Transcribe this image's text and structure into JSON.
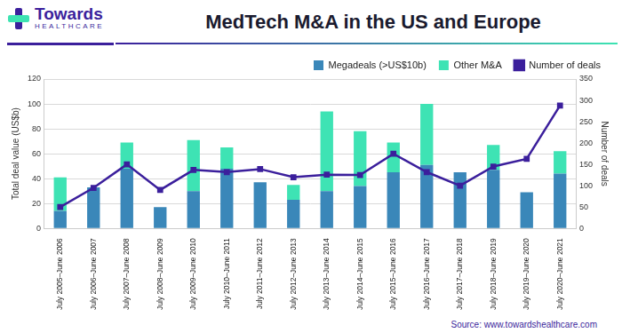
{
  "logo": {
    "text": "Towards",
    "subtext": "HEALTHCARE"
  },
  "chart_data": {
    "type": "bar",
    "title": "MedTech M&A in the US and Europe",
    "source": "Source: www.towardshealthcare.com",
    "y_label": "Total deal value (US$b)",
    "y2_label": "Number of deals",
    "categories": [
      "July 2005–June 2006",
      "July 2006–June 2007",
      "July 2007–June 2008",
      "July 2008–June 2009",
      "July 2009–June 2010",
      "July 2010–June 2011",
      "July 2011–June 2012",
      "July 2012–June 2013",
      "July 2013–June 2014",
      "July 2014–June 2015",
      "July 2015–June 2016",
      "July 2016–June 2017",
      "July 2017–June 2018",
      "July 2018–June 2019",
      "July 2019–June 2020",
      "July 2020–June 2021"
    ],
    "series": [
      {
        "name": "Megadeals (>US$10b)",
        "type": "bar",
        "color": "#3a87b9",
        "values": [
          14,
          33,
          48,
          17,
          30,
          48,
          37,
          23,
          30,
          34,
          45,
          51,
          45,
          47,
          29,
          44
        ]
      },
      {
        "name": "Other M&A",
        "type": "bar",
        "color": "#3ee3b4",
        "values": [
          27,
          0,
          21,
          0,
          41,
          17,
          0,
          12,
          64,
          44,
          24,
          49,
          0,
          20,
          0,
          18
        ]
      },
      {
        "name": "Number of deals",
        "type": "line",
        "axis": "y2",
        "color": "#3b1f9c",
        "marker": "square",
        "values": [
          50,
          95,
          150,
          90,
          137,
          132,
          139,
          120,
          126,
          125,
          175,
          132,
          100,
          145,
          163,
          288
        ]
      }
    ],
    "stacked": true,
    "ylim": [
      0,
      120
    ],
    "yticks": [
      0,
      20,
      40,
      60,
      80,
      100,
      120
    ],
    "y2lim": [
      0,
      350
    ],
    "y2ticks": [
      0,
      50,
      100,
      150,
      200,
      250,
      300,
      350
    ],
    "grid": true,
    "legend": "top-right"
  }
}
